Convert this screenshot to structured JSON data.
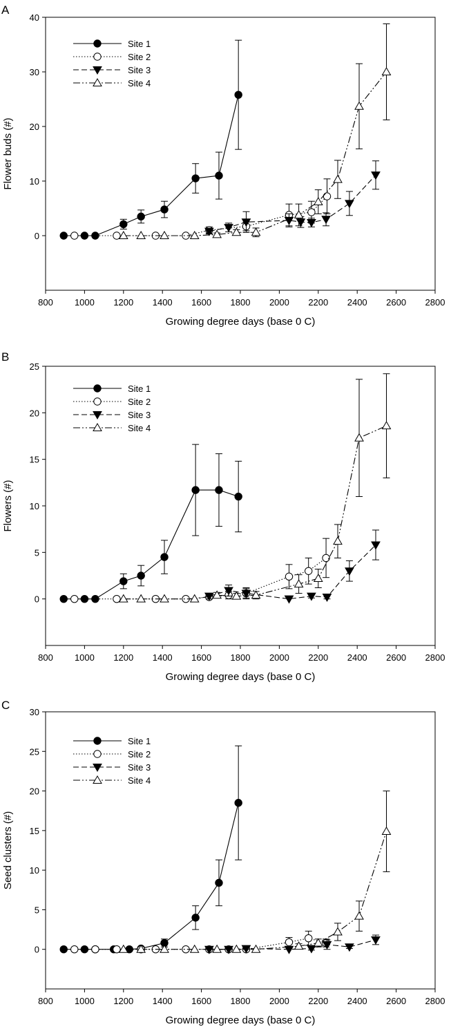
{
  "chart_data": [
    {
      "panel_label": "A",
      "type": "line",
      "xlabel": "Growing degree days (base 0 C)",
      "ylabel": "Flower buds (#)",
      "xlim": [
        800,
        2800
      ],
      "ylim": [
        -10,
        40
      ],
      "x_ticks": [
        800,
        1000,
        1200,
        1400,
        1600,
        1800,
        2000,
        2200,
        2400,
        2600,
        2800
      ],
      "y_ticks": [
        0,
        10,
        20,
        30,
        40
      ],
      "legend_position": "top-left",
      "series": [
        {
          "name": "Site 1",
          "marker": "filled-circle",
          "dash": "solid",
          "x": [
            893,
            1000,
            1055,
            1200,
            1290,
            1410,
            1570,
            1690,
            1790
          ],
          "y": [
            0,
            0,
            0,
            2.1,
            3.5,
            4.8,
            10.5,
            11,
            25.8
          ],
          "err": [
            0,
            0,
            0,
            0.9,
            1.2,
            1.5,
            2.7,
            4.3,
            10
          ]
        },
        {
          "name": "Site 2",
          "marker": "open-circle",
          "dash": "dotted",
          "x": [
            948,
            1165,
            1365,
            1520,
            1640,
            1830,
            2050,
            2165,
            2245
          ],
          "y": [
            0,
            0,
            0,
            0,
            1.0,
            1.7,
            3.8,
            4.3,
            7.2
          ],
          "err": [
            0,
            0,
            0,
            0,
            0.6,
            0.8,
            2.0,
            2.0,
            3.2
          ]
        },
        {
          "name": "Site 3",
          "marker": "filled-triangle-down",
          "dash": "dashed",
          "x": [
            1640,
            1740,
            1830,
            2050,
            2110,
            2165,
            2240,
            2360,
            2495
          ],
          "y": [
            0.8,
            1.5,
            2.5,
            2.8,
            2.5,
            2.4,
            3.0,
            5.9,
            11.1
          ],
          "err": [
            0.5,
            0.8,
            1.9,
            1.2,
            1.0,
            0.8,
            1.2,
            2.2,
            2.6
          ]
        },
        {
          "name": "Site 4",
          "marker": "open-triangle-up",
          "dash": "dash-dot-dot",
          "x": [
            1200,
            1290,
            1410,
            1565,
            1680,
            1780,
            1880,
            2100,
            2200,
            2300,
            2410,
            2550
          ],
          "y": [
            0,
            0,
            0,
            0,
            0.2,
            0.6,
            0.6,
            3.8,
            6.2,
            10.3,
            23.7,
            30
          ],
          "err": [
            0,
            0,
            0,
            0,
            0.3,
            0.5,
            0.8,
            2.0,
            2.2,
            3.5,
            7.8,
            8.8
          ]
        }
      ]
    },
    {
      "panel_label": "B",
      "type": "line",
      "xlabel": "Growing degree days (base 0 C)",
      "ylabel": "Flowers (#)",
      "xlim": [
        800,
        2800
      ],
      "ylim": [
        -5,
        25
      ],
      "x_ticks": [
        800,
        1000,
        1200,
        1400,
        1600,
        1800,
        2000,
        2200,
        2400,
        2600,
        2800
      ],
      "y_ticks": [
        0,
        5,
        10,
        15,
        20,
        25
      ],
      "legend_position": "top-left",
      "series": [
        {
          "name": "Site 1",
          "marker": "filled-circle",
          "dash": "solid",
          "x": [
            893,
            1000,
            1055,
            1200,
            1290,
            1410,
            1570,
            1690,
            1790
          ],
          "y": [
            0,
            0,
            0,
            1.9,
            2.5,
            4.5,
            11.7,
            11.7,
            11
          ],
          "err": [
            0,
            0,
            0,
            0.8,
            1.1,
            1.8,
            4.9,
            3.9,
            3.8
          ]
        },
        {
          "name": "Site 2",
          "marker": "open-circle",
          "dash": "dotted",
          "x": [
            948,
            1165,
            1365,
            1520,
            1640,
            1740,
            1830,
            2050,
            2150,
            2240
          ],
          "y": [
            0,
            0,
            0,
            0,
            0.2,
            0.4,
            0.6,
            2.4,
            3.0,
            4.4
          ],
          "err": [
            0,
            0,
            0,
            0,
            0.2,
            0.4,
            0.6,
            1.3,
            1.4,
            2.1
          ]
        },
        {
          "name": "Site 3",
          "marker": "filled-triangle-down",
          "dash": "dashed",
          "x": [
            1640,
            1740,
            1830,
            2050,
            2165,
            2245,
            2360,
            2495
          ],
          "y": [
            0.3,
            0.9,
            0.6,
            0,
            0.3,
            0.2,
            3.0,
            5.8
          ],
          "err": [
            0.3,
            0.6,
            0.5,
            0,
            0.2,
            0.2,
            1.1,
            1.6
          ]
        },
        {
          "name": "Site 4",
          "marker": "open-triangle-up",
          "dash": "dash-dot-dot",
          "x": [
            1200,
            1290,
            1410,
            1565,
            1680,
            1780,
            1880,
            2100,
            2200,
            2300,
            2410,
            2550
          ],
          "y": [
            0,
            0,
            0,
            0,
            0.4,
            0.3,
            0.4,
            1.6,
            2.2,
            6.2,
            17.3,
            18.6
          ],
          "err": [
            0,
            0,
            0,
            0,
            0.3,
            0.3,
            0.4,
            1.0,
            1.0,
            1.8,
            6.3,
            5.6
          ]
        }
      ]
    },
    {
      "panel_label": "C",
      "type": "line",
      "xlabel": "Growing degree days (base 0 C)",
      "ylabel": "Seed clusters (#)",
      "xlim": [
        800,
        2800
      ],
      "ylim": [
        -5,
        30
      ],
      "x_ticks": [
        800,
        1000,
        1200,
        1400,
        1600,
        1800,
        2000,
        2200,
        2400,
        2600,
        2800
      ],
      "y_ticks": [
        0,
        5,
        10,
        15,
        20,
        25,
        30
      ],
      "legend_position": "top-left",
      "series": [
        {
          "name": "Site 1",
          "marker": "filled-circle",
          "dash": "solid",
          "x": [
            893,
            1000,
            1055,
            1150,
            1230,
            1290,
            1410,
            1570,
            1690,
            1790
          ],
          "y": [
            0,
            0,
            0,
            0,
            0,
            0.1,
            0.8,
            4.0,
            8.4,
            18.5
          ],
          "err": [
            0,
            0,
            0,
            0,
            0,
            0.2,
            0.5,
            1.5,
            2.9,
            7.2
          ]
        },
        {
          "name": "Site 2",
          "marker": "open-circle",
          "dash": "dotted",
          "x": [
            948,
            1055,
            1165,
            1290,
            1365,
            1520,
            1640,
            1740,
            1830,
            2050,
            2150,
            2240
          ],
          "y": [
            0,
            0,
            0,
            0,
            0,
            0,
            0,
            0,
            0,
            0.9,
            1.4,
            0.8
          ],
          "err": [
            0,
            0,
            0,
            0,
            0,
            0,
            0,
            0,
            0,
            0.6,
            0.9,
            0.5
          ]
        },
        {
          "name": "Site 3",
          "marker": "filled-triangle-down",
          "dash": "dashed",
          "x": [
            1640,
            1740,
            1830,
            2050,
            2165,
            2245,
            2360,
            2495
          ],
          "y": [
            0,
            0,
            0.1,
            0,
            0.1,
            0.6,
            0.3,
            1.2
          ],
          "err": [
            0,
            0,
            0.1,
            0,
            0.2,
            0.6,
            0.2,
            0.6
          ]
        },
        {
          "name": "Site 4",
          "marker": "open-triangle-up",
          "dash": "dash-dot-dot",
          "x": [
            1200,
            1290,
            1410,
            1565,
            1680,
            1780,
            1880,
            2100,
            2200,
            2300,
            2410,
            2550
          ],
          "y": [
            0,
            0,
            0,
            0,
            0,
            0,
            0,
            0.4,
            0.8,
            2.2,
            4.2,
            14.9
          ],
          "err": [
            0,
            0,
            0,
            0,
            0,
            0,
            0,
            0.3,
            0.5,
            1.1,
            1.9,
            5.1
          ]
        }
      ]
    }
  ]
}
